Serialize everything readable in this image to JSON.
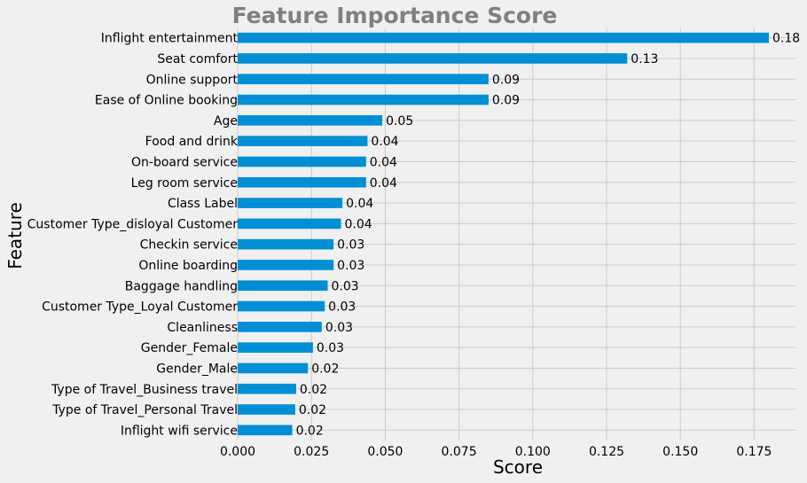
{
  "chart_data": {
    "type": "bar",
    "orientation": "horizontal",
    "title": "Feature Importance Score",
    "xlabel": "Score",
    "ylabel": "Feature",
    "xlim": [
      0,
      0.189
    ],
    "xticks": [
      "0.000",
      "0.025",
      "0.050",
      "0.075",
      "0.100",
      "0.125",
      "0.150",
      "0.175"
    ],
    "grid": true,
    "colors": {
      "bar": "#008fd5",
      "background": "#f0f0f0",
      "grid": "#cbcbcb",
      "title": "#808080",
      "text": "#000000"
    },
    "categories": [
      "Inflight entertainment",
      "Seat comfort",
      "Online support",
      "Ease of Online booking",
      "Age",
      "Food and drink",
      "On-board service",
      "Leg room service",
      "Class Label",
      "Customer Type_disloyal Customer",
      "Checkin service",
      "Online boarding",
      "Baggage handling",
      "Customer Type_Loyal Customer",
      "Cleanliness",
      "Gender_Female",
      "Gender_Male",
      "Type of Travel_Business travel",
      "Type of Travel_Personal Travel",
      "Inflight wifi service"
    ],
    "values": [
      0.18,
      0.132,
      0.085,
      0.085,
      0.049,
      0.044,
      0.0435,
      0.0435,
      0.0355,
      0.035,
      0.0325,
      0.0325,
      0.0305,
      0.0295,
      0.0285,
      0.0255,
      0.0238,
      0.0198,
      0.0195,
      0.0185
    ],
    "labels": [
      "0.18",
      "0.13",
      "0.09",
      "0.09",
      "0.05",
      "0.04",
      "0.04",
      "0.04",
      "0.04",
      "0.04",
      "0.03",
      "0.03",
      "0.03",
      "0.03",
      "0.03",
      "0.03",
      "0.02",
      "0.02",
      "0.02",
      "0.02"
    ]
  }
}
